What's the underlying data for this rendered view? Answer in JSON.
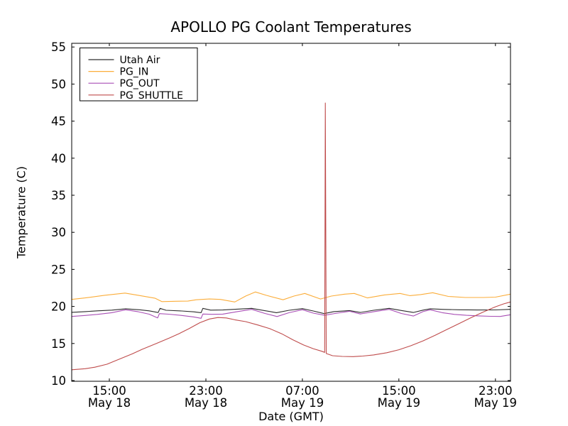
{
  "chart_data": {
    "type": "line",
    "title": "APOLLO PG Coolant Temperatures",
    "xlabel": "Date (GMT)",
    "ylabel": "Temperature (C)",
    "x_unit": "hours from May 18 00:00 GMT",
    "xlim": [
      11.88,
      48.25
    ],
    "ylim": [
      9.9,
      55.5
    ],
    "yticks": [
      10,
      15,
      20,
      25,
      30,
      35,
      40,
      45,
      50,
      55
    ],
    "xticks": [
      {
        "t": 15,
        "time": "15:00",
        "date": "May 18"
      },
      {
        "t": 23,
        "time": "23:00",
        "date": "May 18"
      },
      {
        "t": 31,
        "time": "07:00",
        "date": "May 19"
      },
      {
        "t": 39,
        "time": "15:00",
        "date": "May 19"
      },
      {
        "t": 47,
        "time": "23:00",
        "date": "May 19"
      }
    ],
    "grid": false,
    "legend": {
      "position": "upper left",
      "entries": [
        "Utah Air",
        "PG_IN",
        "PG_OUT",
        "PG_SHUTTLE"
      ]
    },
    "frame_color": "#000000",
    "background": "#ffffff",
    "series": [
      {
        "name": "Utah Air",
        "color": "#2d2d2d",
        "points": [
          [
            11.88,
            19.2
          ],
          [
            13.0,
            19.3
          ],
          [
            14.0,
            19.4
          ],
          [
            15.2,
            19.5
          ],
          [
            16.35,
            19.68
          ],
          [
            17.5,
            19.55
          ],
          [
            18.3,
            19.4
          ],
          [
            19.05,
            19.17
          ],
          [
            19.2,
            19.74
          ],
          [
            19.7,
            19.48
          ],
          [
            21.0,
            19.38
          ],
          [
            22.0,
            19.27
          ],
          [
            22.6,
            19.15
          ],
          [
            22.75,
            19.74
          ],
          [
            23.4,
            19.5
          ],
          [
            24.4,
            19.52
          ],
          [
            25.6,
            19.63
          ],
          [
            26.8,
            19.74
          ],
          [
            27.8,
            19.45
          ],
          [
            28.85,
            19.15
          ],
          [
            29.9,
            19.48
          ],
          [
            31.0,
            19.7
          ],
          [
            31.9,
            19.38
          ],
          [
            32.8,
            19.03
          ],
          [
            33.6,
            19.3
          ],
          [
            34.9,
            19.44
          ],
          [
            35.8,
            19.18
          ],
          [
            36.9,
            19.48
          ],
          [
            38.2,
            19.74
          ],
          [
            39.2,
            19.45
          ],
          [
            40.2,
            19.18
          ],
          [
            41.0,
            19.5
          ],
          [
            41.6,
            19.68
          ],
          [
            42.6,
            19.6
          ],
          [
            44.0,
            19.55
          ],
          [
            45.5,
            19.52
          ],
          [
            47.0,
            19.53
          ],
          [
            48.25,
            19.6
          ]
        ]
      },
      {
        "name": "PG_IN",
        "color": "#fbad3a",
        "points": [
          [
            11.88,
            20.95
          ],
          [
            13.0,
            21.15
          ],
          [
            14.6,
            21.5
          ],
          [
            16.3,
            21.8
          ],
          [
            17.4,
            21.5
          ],
          [
            18.8,
            21.1
          ],
          [
            19.35,
            20.65
          ],
          [
            20.5,
            20.7
          ],
          [
            21.5,
            20.72
          ],
          [
            22.2,
            20.9
          ],
          [
            23.3,
            21.0
          ],
          [
            24.2,
            20.95
          ],
          [
            25.4,
            20.6
          ],
          [
            26.3,
            21.4
          ],
          [
            27.1,
            21.95
          ],
          [
            28.0,
            21.5
          ],
          [
            29.4,
            20.9
          ],
          [
            30.3,
            21.4
          ],
          [
            31.2,
            21.75
          ],
          [
            32.5,
            21.0
          ],
          [
            33.4,
            21.4
          ],
          [
            34.5,
            21.65
          ],
          [
            35.3,
            21.75
          ],
          [
            36.4,
            21.15
          ],
          [
            37.8,
            21.55
          ],
          [
            39.1,
            21.75
          ],
          [
            39.9,
            21.45
          ],
          [
            40.8,
            21.6
          ],
          [
            41.8,
            21.85
          ],
          [
            43.1,
            21.35
          ],
          [
            44.5,
            21.2
          ],
          [
            46.0,
            21.2
          ],
          [
            47.0,
            21.25
          ],
          [
            48.25,
            21.65
          ]
        ]
      },
      {
        "name": "PG_OUT",
        "color": "#a84fb5",
        "points": [
          [
            11.88,
            18.65
          ],
          [
            13.0,
            18.78
          ],
          [
            14.0,
            18.92
          ],
          [
            15.2,
            19.15
          ],
          [
            16.35,
            19.55
          ],
          [
            17.4,
            19.28
          ],
          [
            18.3,
            18.95
          ],
          [
            19.0,
            18.45
          ],
          [
            19.15,
            19.03
          ],
          [
            19.9,
            18.95
          ],
          [
            21.0,
            18.78
          ],
          [
            22.0,
            18.58
          ],
          [
            22.6,
            18.4
          ],
          [
            22.75,
            18.97
          ],
          [
            23.5,
            18.93
          ],
          [
            24.4,
            18.96
          ],
          [
            25.6,
            19.3
          ],
          [
            26.8,
            19.6
          ],
          [
            27.9,
            19.05
          ],
          [
            28.9,
            18.64
          ],
          [
            29.9,
            19.15
          ],
          [
            31.0,
            19.56
          ],
          [
            31.9,
            19.1
          ],
          [
            32.85,
            18.8
          ],
          [
            33.7,
            19.05
          ],
          [
            34.9,
            19.35
          ],
          [
            35.8,
            18.98
          ],
          [
            36.9,
            19.28
          ],
          [
            38.2,
            19.6
          ],
          [
            39.2,
            19.05
          ],
          [
            40.2,
            18.7
          ],
          [
            41.0,
            19.3
          ],
          [
            41.6,
            19.55
          ],
          [
            42.6,
            19.15
          ],
          [
            43.6,
            18.92
          ],
          [
            44.6,
            18.8
          ],
          [
            45.6,
            18.72
          ],
          [
            46.6,
            18.67
          ],
          [
            47.4,
            18.65
          ],
          [
            48.25,
            18.88
          ]
        ]
      },
      {
        "name": "PG_SHUTTLE",
        "color": "#bf4c4c",
        "points": [
          [
            11.88,
            11.45
          ],
          [
            13.0,
            11.6
          ],
          [
            13.8,
            11.8
          ],
          [
            14.8,
            12.2
          ],
          [
            16.0,
            13.0
          ],
          [
            16.9,
            13.6
          ],
          [
            17.7,
            14.2
          ],
          [
            18.9,
            15.0
          ],
          [
            20.0,
            15.75
          ],
          [
            20.8,
            16.35
          ],
          [
            21.6,
            17.0
          ],
          [
            22.5,
            17.8
          ],
          [
            23.3,
            18.3
          ],
          [
            24.0,
            18.5
          ],
          [
            24.7,
            18.45
          ],
          [
            25.4,
            18.2
          ],
          [
            26.3,
            17.95
          ],
          [
            27.3,
            17.5
          ],
          [
            28.3,
            17.0
          ],
          [
            29.3,
            16.3
          ],
          [
            30.2,
            15.5
          ],
          [
            31.1,
            14.8
          ],
          [
            31.9,
            14.3
          ],
          [
            32.6,
            13.95
          ],
          [
            32.85,
            13.8
          ],
          [
            32.9,
            47.45
          ],
          [
            32.98,
            13.65
          ],
          [
            33.5,
            13.35
          ],
          [
            34.3,
            13.25
          ],
          [
            35.2,
            13.22
          ],
          [
            36.0,
            13.3
          ],
          [
            36.9,
            13.45
          ],
          [
            38.0,
            13.75
          ],
          [
            39.0,
            14.15
          ],
          [
            40.0,
            14.7
          ],
          [
            41.0,
            15.35
          ],
          [
            42.0,
            16.1
          ],
          [
            43.0,
            16.9
          ],
          [
            44.0,
            17.7
          ],
          [
            45.0,
            18.5
          ],
          [
            46.0,
            19.25
          ],
          [
            47.0,
            19.95
          ],
          [
            47.7,
            20.35
          ],
          [
            48.25,
            20.6
          ]
        ]
      }
    ]
  }
}
